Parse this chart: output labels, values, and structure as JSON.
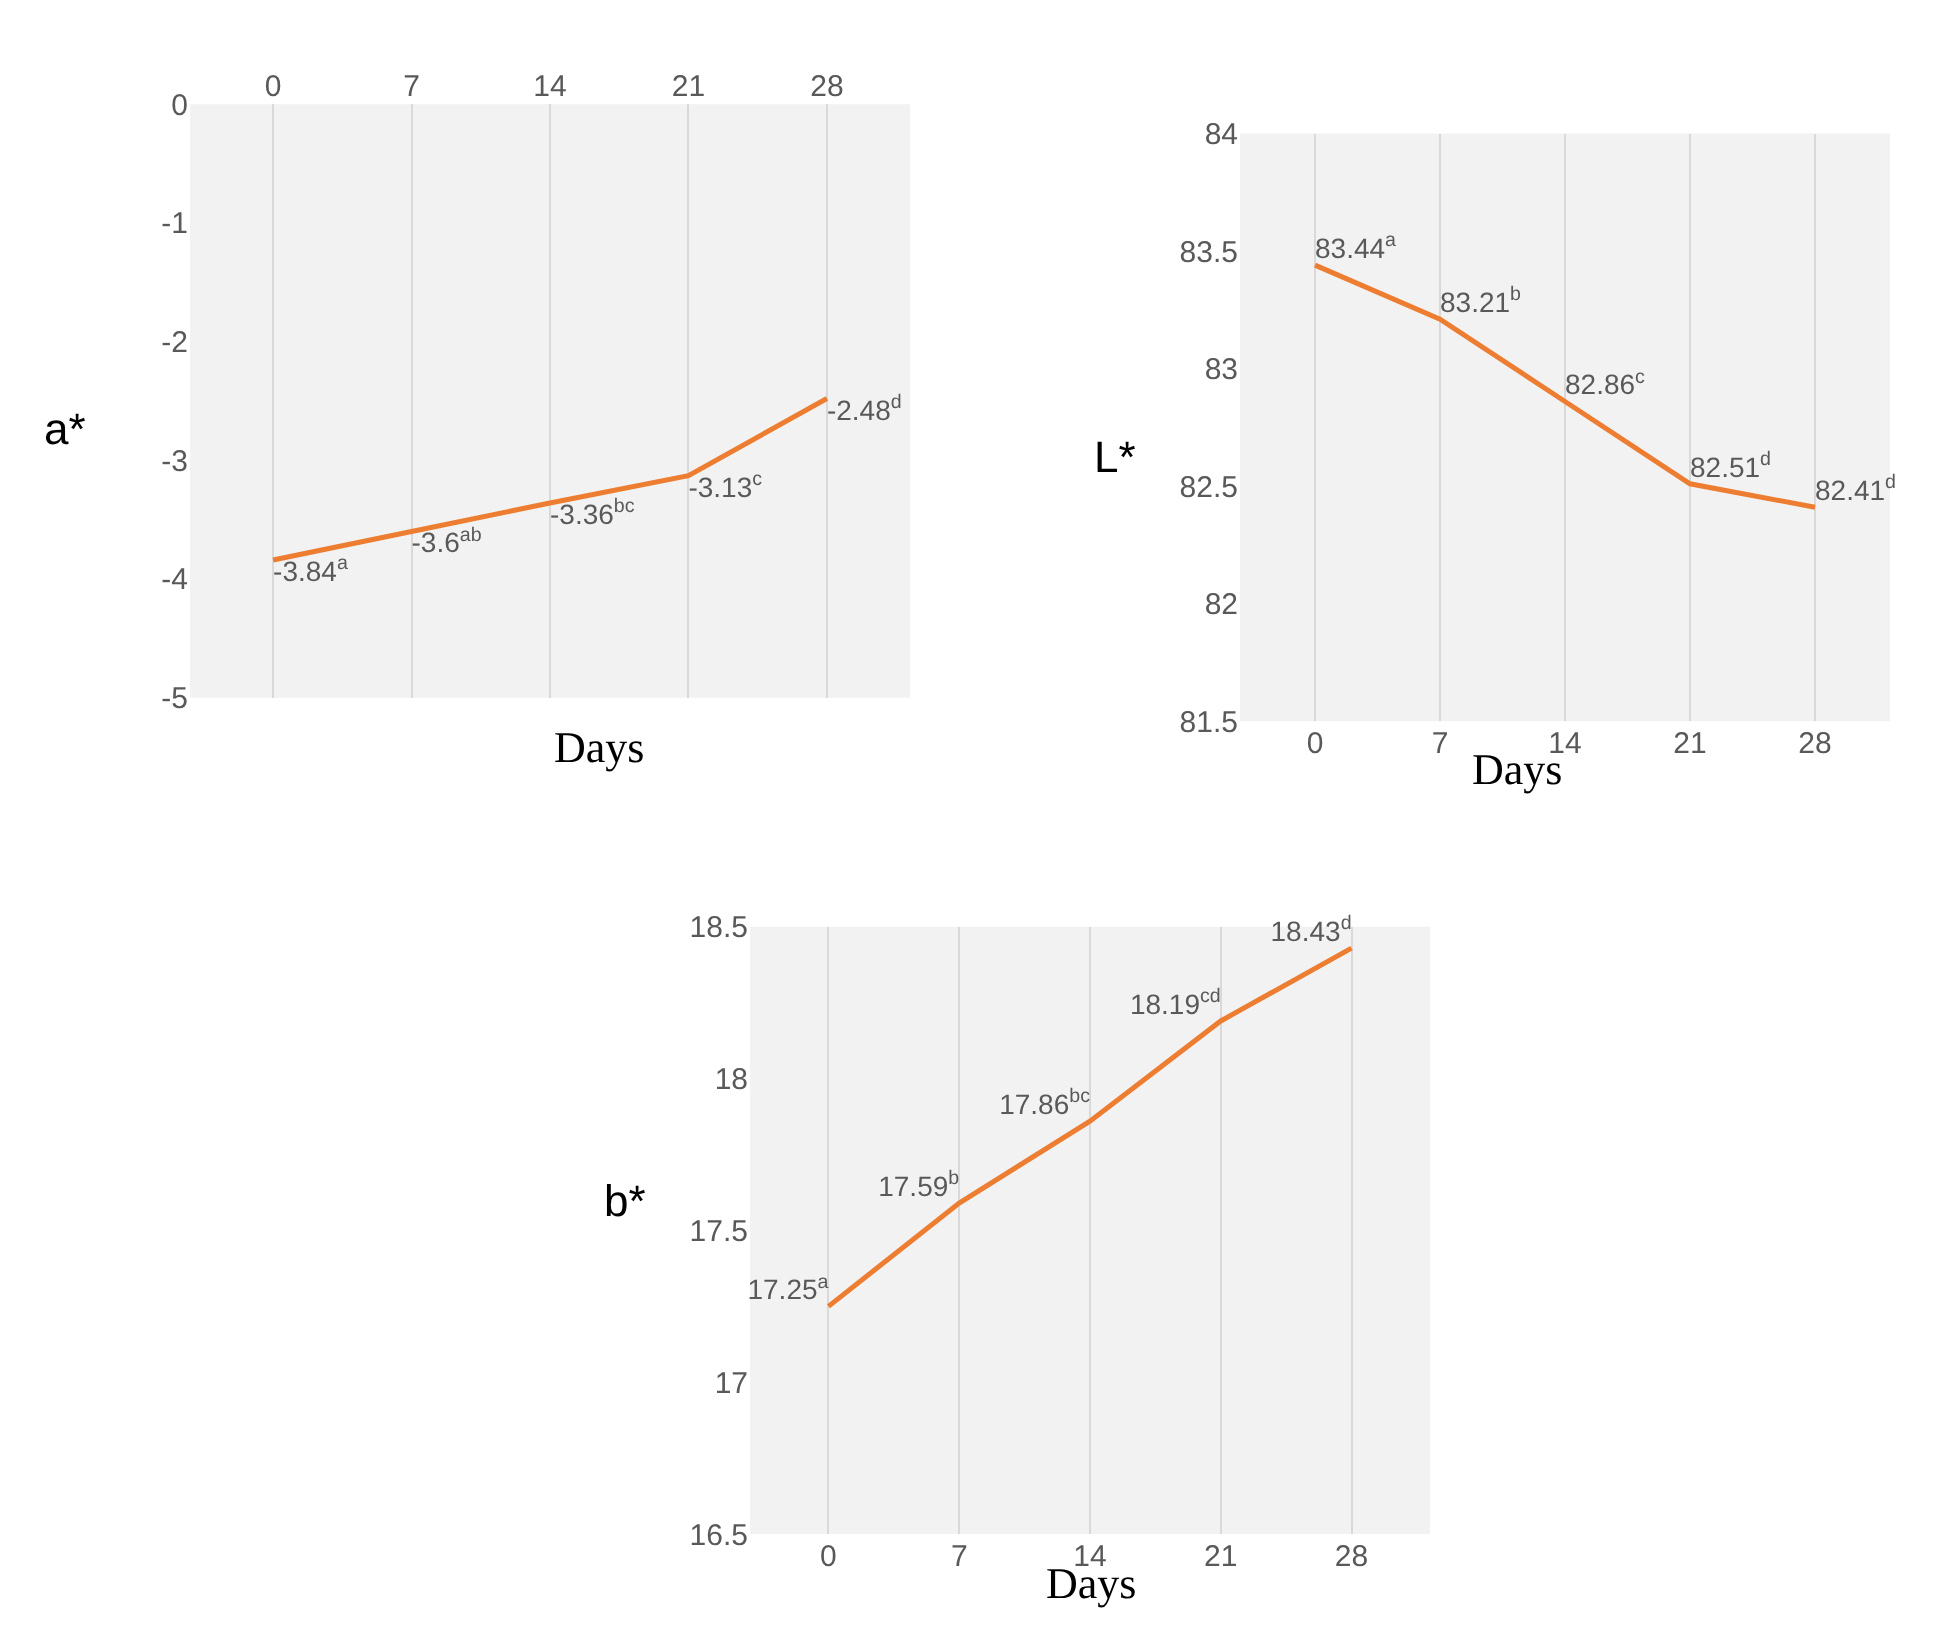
{
  "chart_data": [
    {
      "type": "line",
      "categories": [
        "0",
        "7",
        "14",
        "21",
        "28"
      ],
      "xlabel": "Days",
      "ylabel": "a*",
      "ylim": [
        -5,
        0
      ],
      "yticks": [
        -5,
        -4,
        -3,
        -2,
        -1,
        0
      ],
      "grid": "x",
      "marker": "none",
      "line_style": "solid",
      "series": [
        {
          "color": "#ed7d31",
          "values": [
            -3.84,
            -3.6,
            -3.36,
            -3.13,
            -2.48
          ],
          "value_labels": [
            "-3.84$^{a}$",
            "-3.6$^{ab}$",
            "-3.36$^{bc}$",
            "-3.13$^{c}$",
            "-2.48$^{d}$"
          ]
        }
      ]
    },
    {
      "type": "line",
      "categories": [
        "0",
        "7",
        "14",
        "21",
        "28"
      ],
      "xlabel": "Days",
      "ylabel": "L*",
      "ylim": [
        81.5,
        84
      ],
      "yticks": [
        81.5,
        82,
        82.5,
        83,
        83.5,
        84
      ],
      "grid": "x",
      "marker": "none",
      "line_style": "solid",
      "series": [
        {
          "color": "#ed7d31",
          "values": [
            83.44,
            83.21,
            82.86,
            82.51,
            82.41
          ],
          "value_labels": [
            "83.44$^{a}$",
            "83.21$^{b}$",
            "82.86$^{c}$",
            "82.51$^{d}$",
            "82.41$^{d}$"
          ]
        }
      ]
    },
    {
      "type": "line",
      "categories": [
        "0",
        "7",
        "14",
        "21",
        "28"
      ],
      "xlabel": "Days",
      "ylabel": "b*",
      "ylim": [
        16.5,
        18.5
      ],
      "yticks": [
        16.5,
        17,
        17.5,
        18,
        18.5
      ],
      "grid": "x",
      "marker": "none",
      "line_style": "solid",
      "series": [
        {
          "color": "#ed7d31",
          "values": [
            17.25,
            17.59,
            17.86,
            18.19,
            18.43
          ],
          "value_labels": [
            "17.25$^{a}$",
            "17.59$^{b}$",
            "17.86$^{bc}$",
            "18.19$^{cd}$",
            "18.43$^{d}$"
          ]
        }
      ]
    }
  ]
}
